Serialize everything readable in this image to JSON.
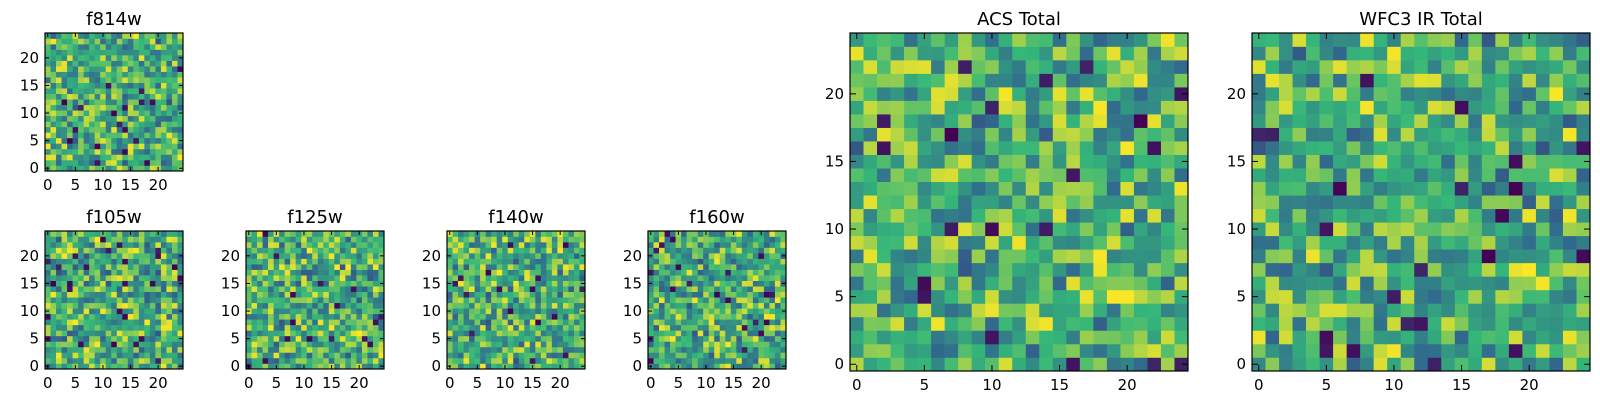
{
  "chart_data": [
    {
      "type": "heatmap",
      "title": "f814w",
      "grid_size": 25,
      "colormap": [
        "#440154",
        "#31688e",
        "#35b779",
        "#fde725"
      ],
      "x_ticks": [
        "0",
        "5",
        "10",
        "15",
        "20"
      ],
      "y_ticks": [
        "0",
        "5",
        "10",
        "15",
        "20"
      ],
      "xlim": [
        0,
        25
      ],
      "ylim": [
        0,
        25
      ],
      "seed": 11
    },
    {
      "type": "heatmap",
      "title": "f105w",
      "grid_size": 25,
      "colormap": [
        "#440154",
        "#31688e",
        "#35b779",
        "#fde725"
      ],
      "x_ticks": [
        "0",
        "5",
        "10",
        "15",
        "20"
      ],
      "y_ticks": [
        "0",
        "5",
        "10",
        "15",
        "20"
      ],
      "xlim": [
        0,
        25
      ],
      "ylim": [
        0,
        25
      ],
      "seed": 23
    },
    {
      "type": "heatmap",
      "title": "f125w",
      "grid_size": 25,
      "colormap": [
        "#440154",
        "#31688e",
        "#35b779",
        "#fde725"
      ],
      "x_ticks": [
        "0",
        "5",
        "10",
        "15",
        "20"
      ],
      "y_ticks": [
        "0",
        "5",
        "10",
        "15",
        "20"
      ],
      "xlim": [
        0,
        25
      ],
      "ylim": [
        0,
        25
      ],
      "seed": 37
    },
    {
      "type": "heatmap",
      "title": "f140w",
      "grid_size": 25,
      "colormap": [
        "#440154",
        "#31688e",
        "#35b779",
        "#fde725"
      ],
      "x_ticks": [
        "0",
        "5",
        "10",
        "15",
        "20"
      ],
      "y_ticks": [
        "0",
        "5",
        "10",
        "15",
        "20"
      ],
      "xlim": [
        0,
        25
      ],
      "ylim": [
        0,
        25
      ],
      "seed": 41
    },
    {
      "type": "heatmap",
      "title": "f160w",
      "grid_size": 25,
      "colormap": [
        "#440154",
        "#31688e",
        "#35b779",
        "#fde725"
      ],
      "x_ticks": [
        "0",
        "5",
        "10",
        "15",
        "20"
      ],
      "y_ticks": [
        "0",
        "5",
        "10",
        "15",
        "20"
      ],
      "xlim": [
        0,
        25
      ],
      "ylim": [
        0,
        25
      ],
      "seed": 53
    },
    {
      "type": "heatmap",
      "title": "ACS Total",
      "grid_size": 25,
      "colormap": [
        "#440154",
        "#31688e",
        "#35b779",
        "#fde725"
      ],
      "x_ticks": [
        "0",
        "5",
        "10",
        "15",
        "20"
      ],
      "y_ticks": [
        "0",
        "5",
        "10",
        "15",
        "20"
      ],
      "xlim": [
        0,
        25
      ],
      "ylim": [
        0,
        25
      ],
      "seed": 67
    },
    {
      "type": "heatmap",
      "title": "WFC3 IR Total",
      "grid_size": 25,
      "colormap": [
        "#440154",
        "#31688e",
        "#35b779",
        "#fde725"
      ],
      "x_ticks": [
        "0",
        "5",
        "10",
        "15",
        "20"
      ],
      "y_ticks": [
        "0",
        "5",
        "10",
        "15",
        "20"
      ],
      "xlim": [
        0,
        25
      ],
      "ylim": [
        0,
        25
      ],
      "seed": 79
    }
  ]
}
